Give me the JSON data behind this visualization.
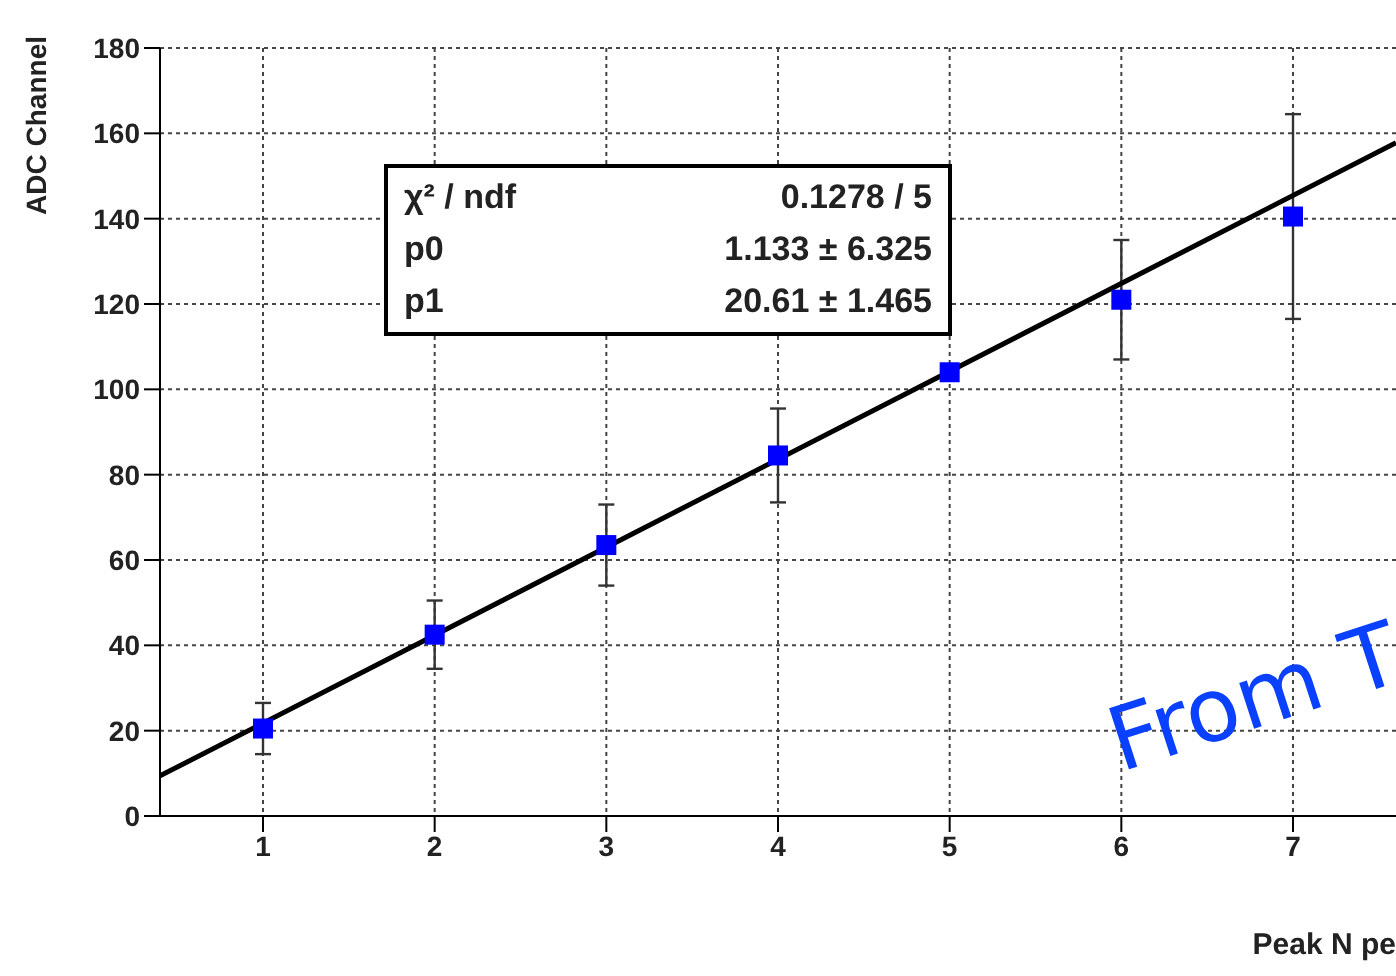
{
  "chart_data": {
    "type": "scatter",
    "xlabel": "Peak N pe",
    "ylabel": "ADC Channel",
    "xlim": [
      0.4,
      7.6
    ],
    "xticks": [
      1,
      2,
      3,
      4,
      5,
      6,
      7
    ],
    "ylim": [
      0,
      180
    ],
    "yticks": [
      0,
      20,
      40,
      60,
      80,
      100,
      120,
      140,
      160,
      180
    ],
    "grid": true,
    "legend": false,
    "marker": "square",
    "series": [
      {
        "type": "scatter",
        "color": "#0000ff",
        "x": [
          1,
          2,
          3,
          4,
          5,
          6,
          7
        ],
        "values": [
          20.5,
          42.5,
          63.5,
          84.5,
          104,
          121,
          140.5
        ],
        "errors": [
          6,
          8,
          9.5,
          11,
          null,
          14,
          24
        ]
      },
      {
        "type": "line",
        "color": "#000000",
        "x": [
          0.4,
          7.6
        ],
        "values": [
          9.4,
          157.8
        ],
        "line_style": "solid",
        "marker": "none"
      }
    ],
    "annotations": [
      "χ² / ndf",
      "0.1278 / 5",
      "p0",
      "1.133 ± 6.325",
      "p1",
      "20.61 ± 1.465",
      "From T"
    ]
  }
}
